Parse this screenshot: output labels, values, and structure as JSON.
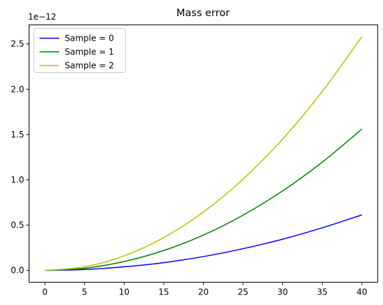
{
  "chart_data": {
    "type": "line",
    "title": "Mass error",
    "xlabel": "",
    "ylabel": "",
    "y_offset_label": "1e−12",
    "xlim": [
      -2,
      42
    ],
    "ylim": [
      -0.13,
      2.71
    ],
    "x_ticks": [
      0,
      5,
      10,
      15,
      20,
      25,
      30,
      35,
      40
    ],
    "y_ticks": [
      0.0,
      0.5,
      1.0,
      1.5,
      2.0,
      2.5
    ],
    "y_tick_labels": [
      "0.0",
      "0.5",
      "1.0",
      "1.5",
      "2.0",
      "2.5"
    ],
    "grid": false,
    "legend_position": "top-left",
    "x": [
      0,
      5,
      10,
      15,
      20,
      25,
      30,
      35,
      40
    ],
    "series": [
      {
        "name": "Sample = 0",
        "color": "#0000ff",
        "values": [
          0.0,
          0.01,
          0.04,
          0.086,
          0.153,
          0.24,
          0.345,
          0.47,
          0.613
        ]
      },
      {
        "name": "Sample = 1",
        "color": "#008000",
        "values": [
          0.0,
          0.024,
          0.098,
          0.22,
          0.39,
          0.61,
          0.878,
          1.195,
          1.56
        ]
      },
      {
        "name": "Sample = 2",
        "color": "#bfbf00",
        "values": [
          0.0,
          0.04,
          0.161,
          0.363,
          0.645,
          1.007,
          1.45,
          1.975,
          2.58
        ]
      }
    ]
  }
}
